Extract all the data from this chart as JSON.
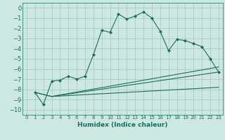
{
  "xlabel": "Humidex (Indice chaleur)",
  "background_color": "#cce8e0",
  "grid_color": "#aaccC4",
  "line_color": "#1a6e60",
  "xlim": [
    -0.5,
    23.5
  ],
  "ylim": [
    -10.5,
    0.5
  ],
  "xticks": [
    0,
    1,
    2,
    3,
    4,
    5,
    6,
    7,
    8,
    9,
    10,
    11,
    12,
    13,
    14,
    15,
    16,
    17,
    18,
    19,
    20,
    21,
    22,
    23
  ],
  "yticks": [
    0,
    -1,
    -2,
    -3,
    -4,
    -5,
    -6,
    -7,
    -8,
    -9,
    -10
  ],
  "line1_x": [
    1,
    2,
    3,
    4,
    5,
    6,
    7,
    8,
    9,
    10,
    11,
    12,
    13,
    14,
    15,
    16,
    17,
    18,
    19,
    20,
    21,
    22,
    23
  ],
  "line1_y": [
    -8.3,
    -9.5,
    -7.2,
    -7.1,
    -6.7,
    -7.0,
    -6.7,
    -4.6,
    -2.2,
    -2.4,
    -0.6,
    -1.1,
    -0.8,
    -0.4,
    -1.0,
    -2.3,
    -4.2,
    -3.1,
    -3.2,
    -3.5,
    -3.8,
    -5.0,
    -6.3
  ],
  "line2_x": [
    1,
    3,
    23
  ],
  "line2_y": [
    -8.3,
    -8.7,
    -6.3
  ],
  "line3_x": [
    1,
    3,
    23
  ],
  "line3_y": [
    -8.3,
    -8.7,
    -5.8
  ],
  "line4_x": [
    3,
    23
  ],
  "line4_y": [
    -8.7,
    -7.8
  ]
}
